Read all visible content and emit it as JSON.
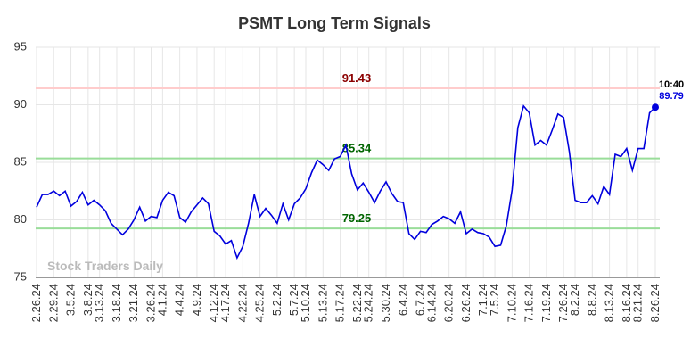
{
  "chart_data": {
    "type": "line",
    "title": "PSMT Long Term Signals",
    "categories": [
      "2.26.24",
      null,
      null,
      "2.29.24",
      null,
      null,
      "3.5.24",
      null,
      null,
      "3.8.24",
      null,
      "3.13.24",
      null,
      null,
      "3.18.24",
      null,
      null,
      "3.21.24",
      null,
      null,
      "3.26.24",
      null,
      "4.1.24",
      null,
      null,
      "4.4.24",
      null,
      null,
      "4.9.24",
      null,
      null,
      "4.12.24",
      null,
      "4.17.24",
      null,
      null,
      "4.22.24",
      null,
      null,
      "4.25.24",
      null,
      null,
      "5.2.24",
      null,
      null,
      "5.7.24",
      null,
      "5.10.24",
      null,
      null,
      "5.13.24",
      null,
      null,
      "5.17.24",
      null,
      null,
      "5.22.24",
      null,
      "5.24.24",
      null,
      null,
      "5.30.24",
      null,
      null,
      "6.4.24",
      null,
      null,
      "6.7.24",
      null,
      "6.14.24",
      null,
      null,
      "6.20.24",
      null,
      null,
      "6.26.24",
      null,
      null,
      "7.1.24",
      null,
      "7.5.24",
      null,
      null,
      "7.10.24",
      null,
      null,
      "7.16.24",
      null,
      null,
      "7.19.24",
      null,
      null,
      "7.26.24",
      null,
      "8.2.24",
      null,
      null,
      "8.8.24",
      null,
      null,
      "8.13.24",
      null,
      null,
      "8.16.24",
      null,
      "8.21.24",
      null,
      null,
      "8.26.24"
    ],
    "values": [
      81.1,
      82.2,
      82.2,
      82.5,
      82.1,
      82.5,
      81.2,
      81.6,
      82.4,
      81.3,
      81.7,
      81.3,
      80.8,
      79.7,
      79.2,
      78.7,
      79.2,
      80.0,
      81.1,
      79.9,
      80.3,
      80.2,
      81.7,
      82.4,
      82.1,
      80.2,
      79.8,
      80.7,
      81.3,
      81.9,
      81.4,
      79.0,
      78.6,
      77.9,
      78.2,
      76.7,
      77.7,
      79.7,
      82.2,
      80.3,
      81.0,
      80.4,
      79.7,
      81.4,
      80.0,
      81.4,
      81.9,
      82.7,
      84.1,
      85.2,
      84.8,
      84.3,
      85.3,
      85.5,
      86.5,
      84.0,
      82.6,
      83.2,
      82.4,
      81.5,
      82.5,
      83.3,
      82.3,
      81.6,
      81.5,
      78.8,
      78.3,
      79.0,
      78.9,
      79.6,
      79.9,
      80.3,
      80.1,
      79.7,
      80.7,
      78.8,
      79.2,
      78.9,
      78.8,
      78.5,
      77.7,
      77.8,
      79.5,
      82.6,
      88.0,
      89.9,
      89.3,
      86.5,
      86.9,
      86.5,
      87.8,
      89.2,
      88.9,
      85.9,
      81.7,
      81.5,
      81.5,
      82.1,
      81.4,
      82.9,
      82.2,
      85.7,
      85.5,
      86.2,
      84.3,
      86.2,
      86.2,
      89.3,
      89.79
    ],
    "color": "#0000dd",
    "reference_lines": [
      {
        "value": 91.43,
        "color": "#ffcccc",
        "label_color": "#8b0000"
      },
      {
        "value": 85.34,
        "color": "#99dd99",
        "label_color": "#006400"
      },
      {
        "value": 79.25,
        "color": "#99dd99",
        "label_color": "#006400"
      }
    ],
    "last_point_time": "10:40",
    "watermark": "Stock Traders Daily",
    "ylim": [
      75,
      95
    ],
    "yticks": [
      75,
      80,
      85,
      90,
      95
    ],
    "grid": true
  }
}
